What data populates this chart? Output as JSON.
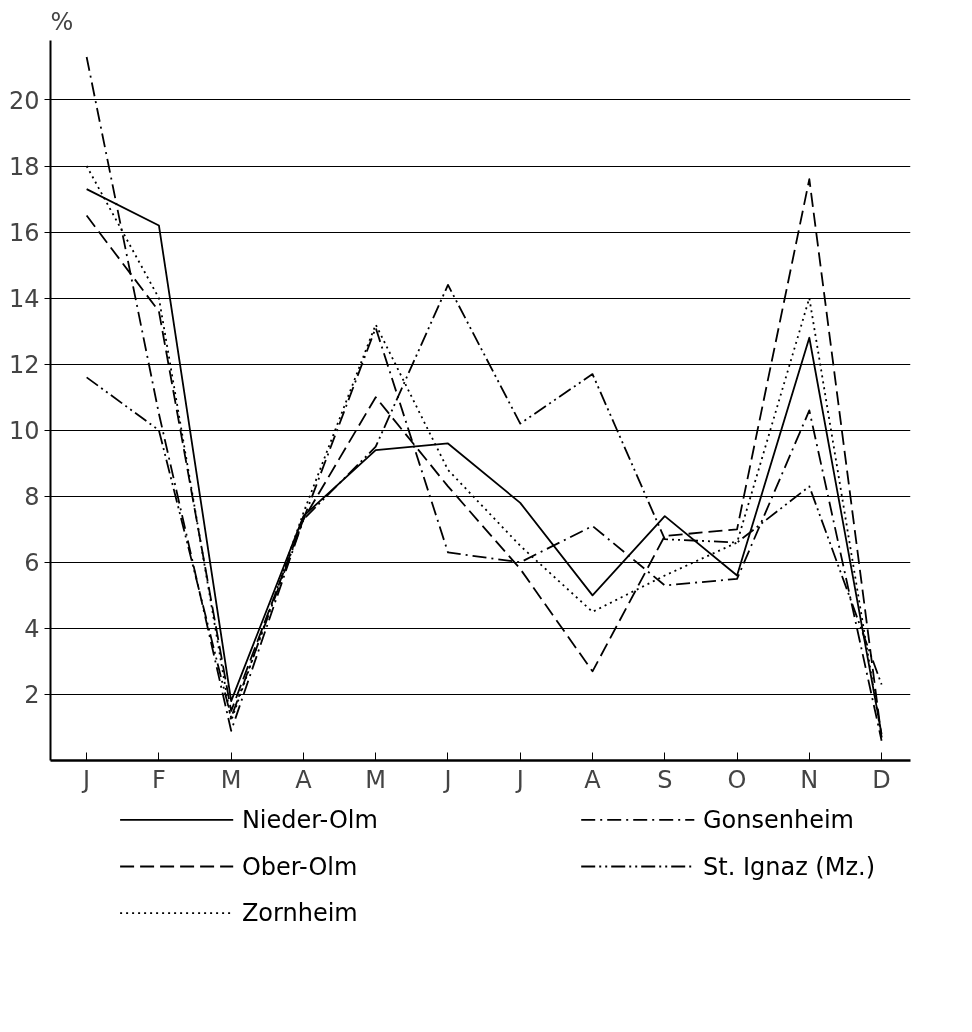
{
  "chart_data": {
    "type": "line",
    "ylabel": "%",
    "categories": [
      "J",
      "F",
      "M",
      "A",
      "M",
      "J",
      "J",
      "A",
      "S",
      "O",
      "N",
      "D"
    ],
    "ylim": [
      0,
      21.8
    ],
    "yticks": [
      2,
      4,
      6,
      8,
      10,
      12,
      14,
      16,
      18,
      20
    ],
    "grid": "y",
    "legend": "bottom",
    "marker": "none",
    "series": [
      {
        "name": "Nieder-Olm",
        "color": "#000000",
        "line_style": "solid",
        "values": [
          17.3,
          16.2,
          1.8,
          7.4,
          9.4,
          9.6,
          7.8,
          5.0,
          7.4,
          5.6,
          12.8,
          0.8
        ]
      },
      {
        "name": "Ober-Olm",
        "color": "#000000",
        "line_style": "dashed",
        "values": [
          16.5,
          13.6,
          1.5,
          7.3,
          11.0,
          8.3,
          5.8,
          2.7,
          6.8,
          7.0,
          17.6,
          0.7
        ]
      },
      {
        "name": "Zornheim",
        "color": "#000000",
        "line_style": "dotted",
        "values": [
          18.0,
          14.0,
          1.2,
          7.5,
          13.2,
          8.8,
          6.5,
          4.5,
          5.6,
          6.6,
          14.0,
          0.7
        ]
      },
      {
        "name": "Gonsenheim",
        "color": "#000000",
        "line_style": "dashdot",
        "values": [
          21.3,
          10.5,
          0.9,
          7.3,
          13.1,
          6.3,
          6.0,
          7.1,
          5.3,
          5.5,
          10.6,
          0.6
        ]
      },
      {
        "name": "St. Ignaz (Mz.)",
        "color": "#000000",
        "line_style": "dashdotdot",
        "values": [
          11.6,
          10.0,
          1.3,
          7.3,
          9.5,
          14.4,
          10.2,
          11.7,
          6.7,
          6.6,
          8.3,
          2.3
        ]
      }
    ]
  }
}
